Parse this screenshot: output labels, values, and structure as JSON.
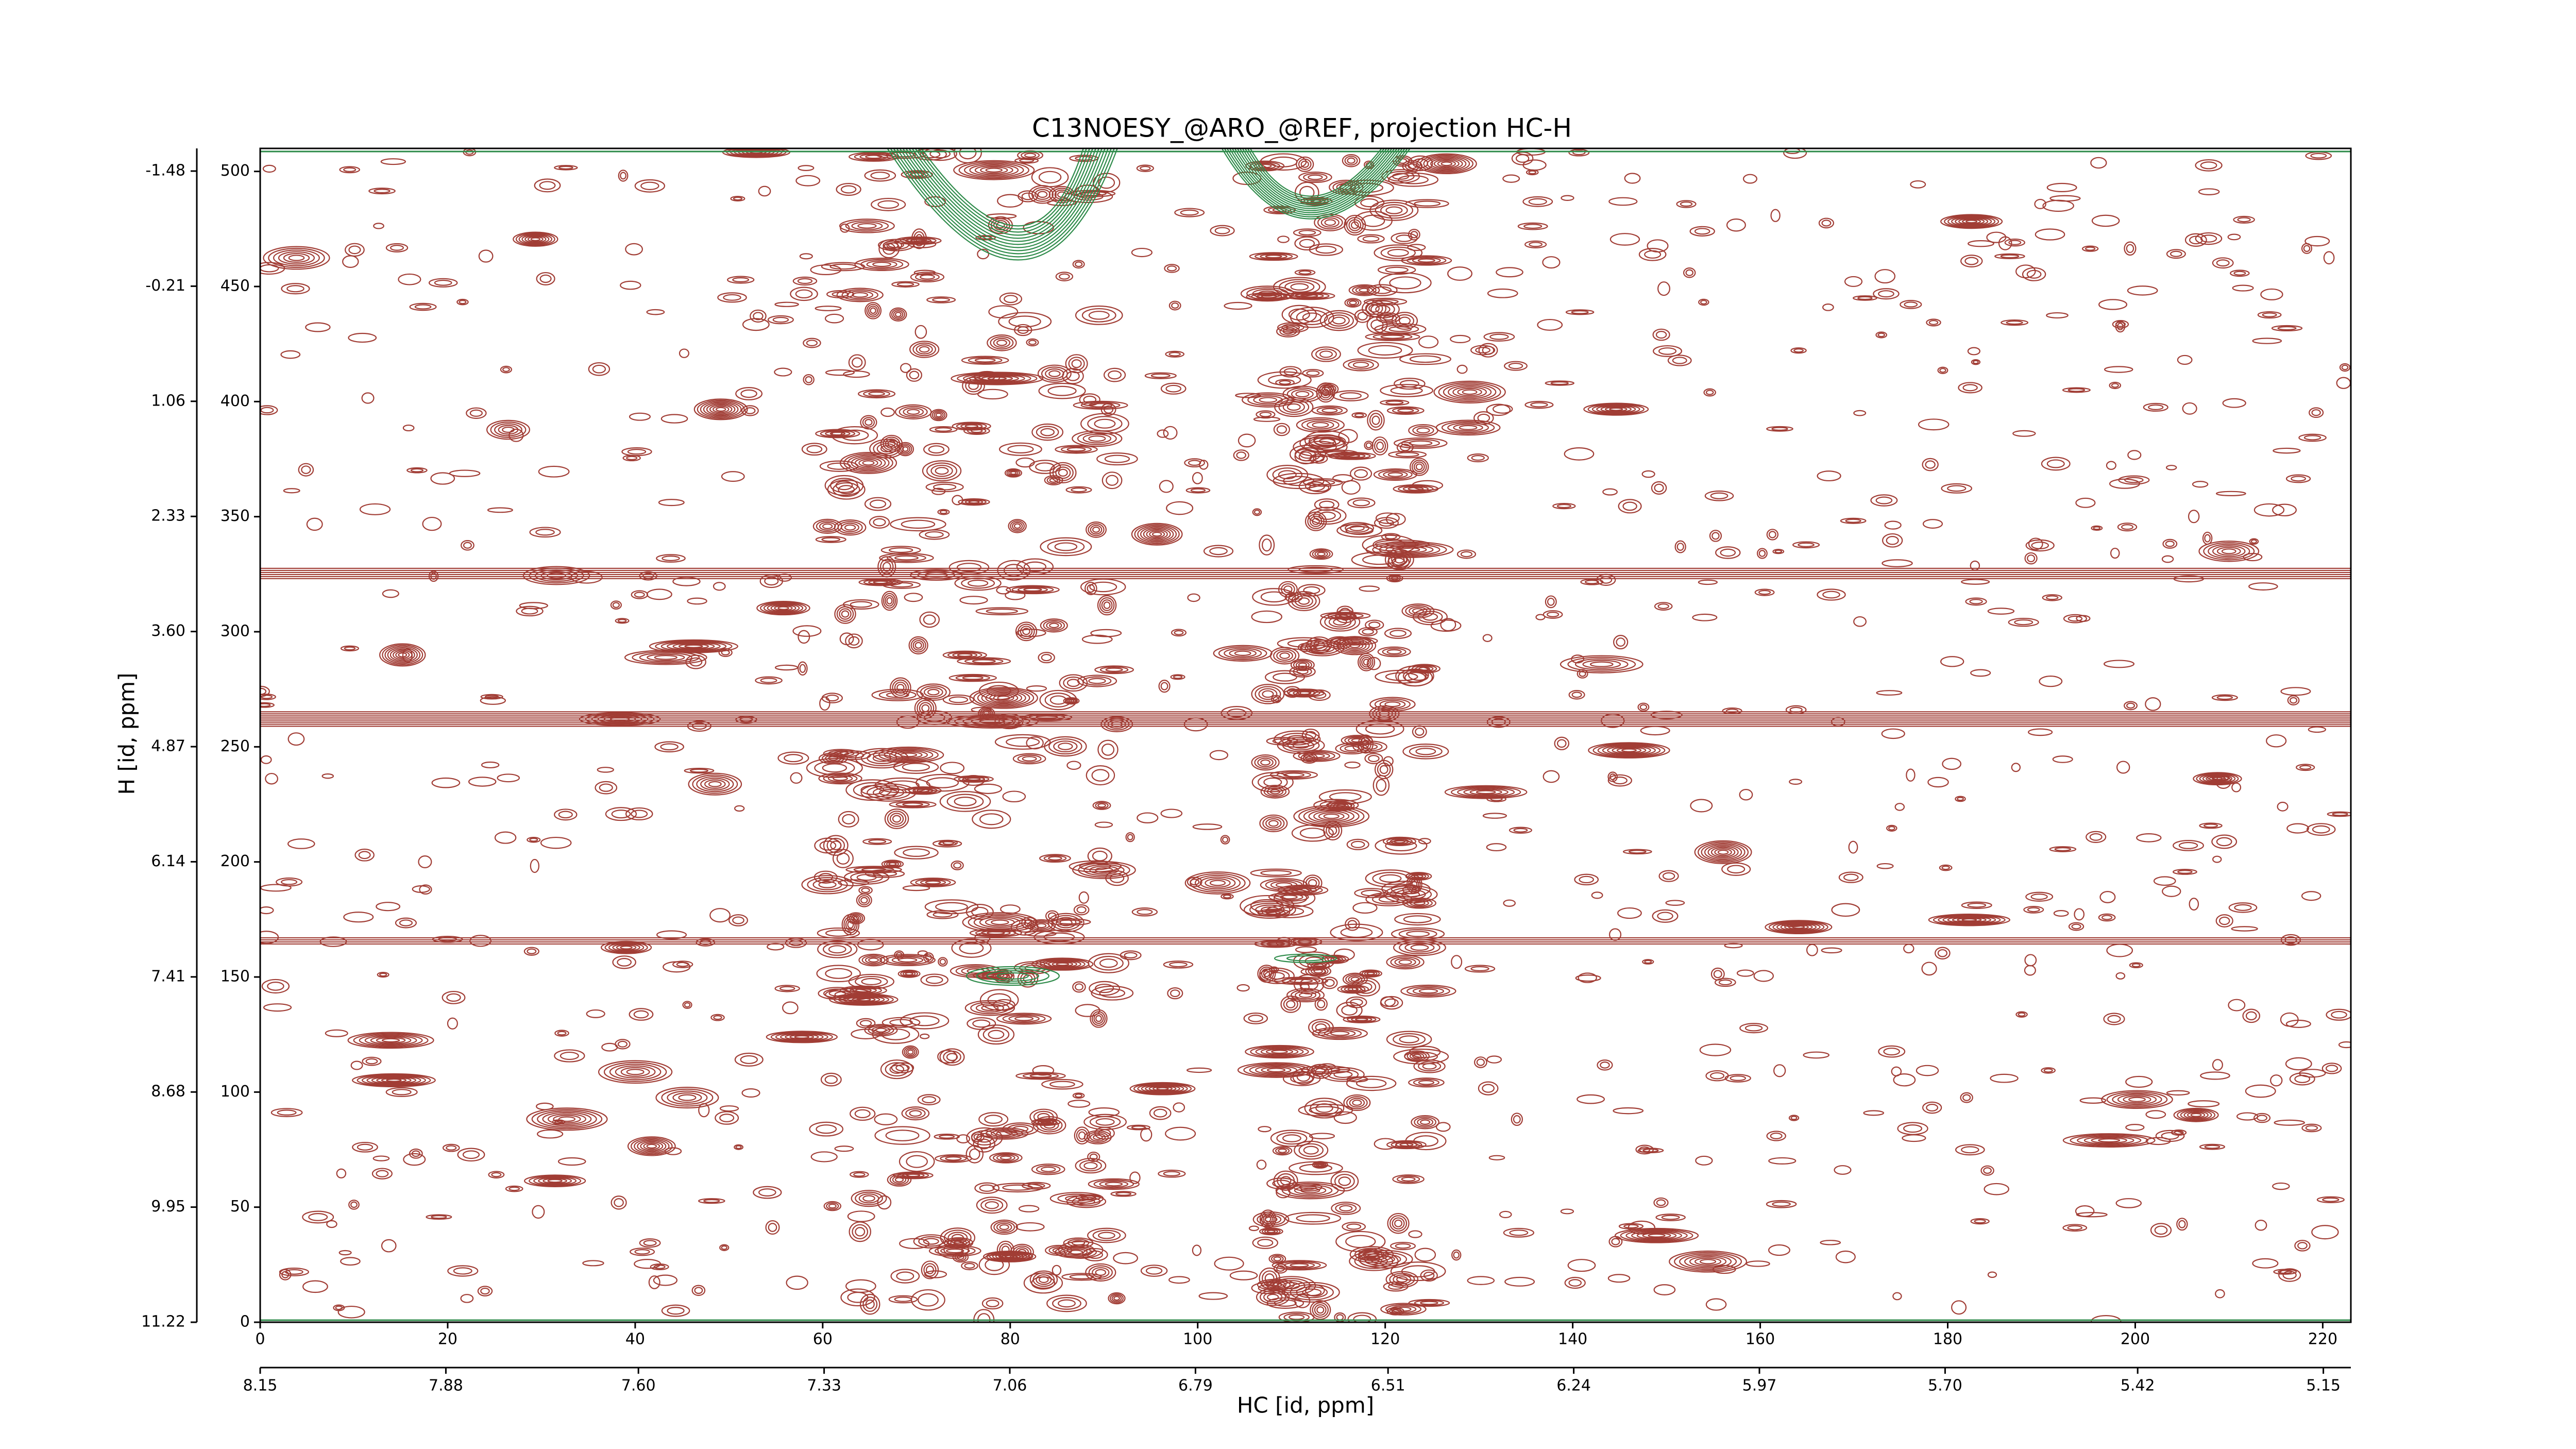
{
  "chart_data": {
    "type": "contour",
    "title": "C13NOESY_@ARO_@REF, projection HC-H",
    "x_label": "HC [id, ppm]",
    "y_label": "H [id, ppm]",
    "xlim": [
      0,
      223
    ],
    "xticks": [
      0,
      20,
      40,
      60,
      80,
      100,
      120,
      140,
      160,
      180,
      200,
      220
    ],
    "ylim": [
      0,
      510
    ],
    "yticks": [
      0,
      50,
      100,
      150,
      200,
      250,
      300,
      350,
      400,
      450,
      500
    ],
    "x2lim": [
      8.15,
      5.11
    ],
    "x2ticks": [
      8.15,
      7.88,
      {
        "value": 7.6,
        "label": "7.60"
      },
      7.33,
      7.06,
      6.79,
      6.51,
      6.24,
      5.97,
      {
        "value": 5.7,
        "label": "5.70"
      },
      5.42,
      5.15
    ],
    "y2lim": [
      11.22,
      -1.73
    ],
    "y2ticks": [
      -1.48,
      -0.21,
      1.06,
      2.33,
      {
        "value": 3.6,
        "label": "3.60"
      },
      4.87,
      6.14,
      7.41,
      8.68,
      9.95,
      11.22
    ],
    "colors": {
      "positive": "#a13d35",
      "negative": "#2e8b4a"
    }
  }
}
